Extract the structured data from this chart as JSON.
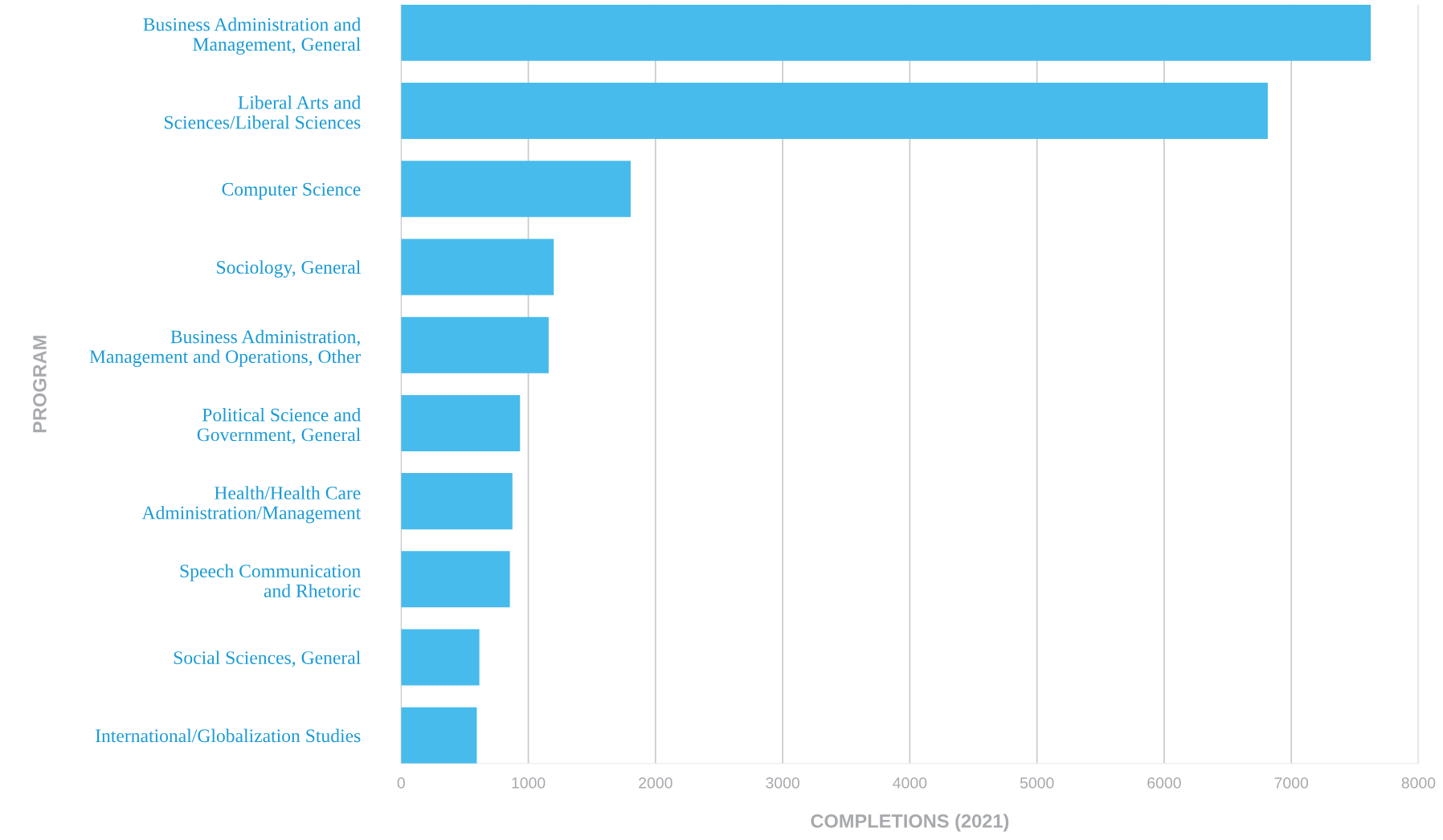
{
  "chart_data": {
    "type": "bar",
    "orientation": "horizontal",
    "xlabel": "COMPLETIONS (2021)",
    "ylabel": "PROGRAM",
    "categories": [
      "Business Administration and\nManagement, General",
      "Liberal Arts and\nSciences/Liberal Sciences",
      "Computer Science",
      "Sociology, General",
      "Business Administration,\nManagement and Operations, Other",
      "Political Science and\nGovernment, General",
      "Health/Health Care\nAdministration/Management",
      "Speech Communication\nand Rhetoric",
      "Social Sciences, General",
      "International/Globalization Studies"
    ],
    "values": [
      7625,
      6815,
      1805,
      1200,
      1160,
      935,
      875,
      855,
      615,
      595
    ],
    "color": "#47bbeb",
    "xlim": [
      0,
      8000
    ],
    "xticks": [
      0,
      1000,
      2000,
      3000,
      4000,
      5000,
      6000,
      7000,
      8000
    ],
    "grid": "x"
  }
}
